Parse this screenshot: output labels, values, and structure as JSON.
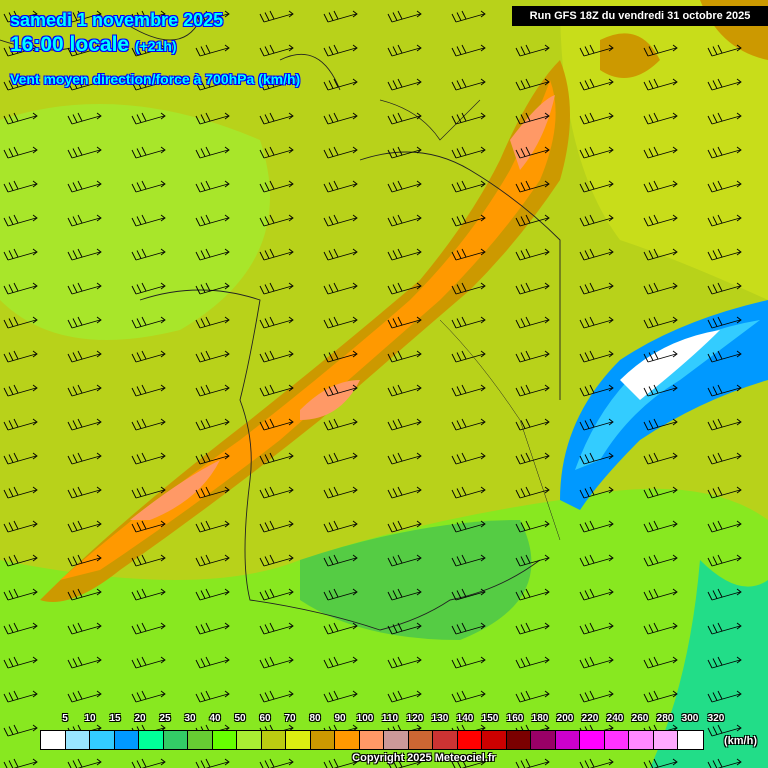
{
  "header": {
    "date": "samedi 1 novembre 2025",
    "time": "16:00 locale",
    "offset": "(+21h)",
    "parameter": "Vent moyen direction/force à 700hPa (km/h)",
    "run": "Run GFS 18Z du vendredi 31 octobre 2025"
  },
  "legend": {
    "labels": [
      "5",
      "10",
      "15",
      "20",
      "25",
      "30",
      "40",
      "50",
      "60",
      "70",
      "80",
      "90",
      "100",
      "110",
      "120",
      "130",
      "140",
      "150",
      "160",
      "180",
      "200",
      "220",
      "240",
      "260",
      "280",
      "300",
      "320"
    ],
    "colors": [
      "#ffffff",
      "#99e6ff",
      "#33ccff",
      "#0099ff",
      "#00ff99",
      "#33cc66",
      "#66cc33",
      "#66ff00",
      "#aaee33",
      "#bbcc11",
      "#ddee11",
      "#cc9900",
      "#ff9900",
      "#ff9966",
      "#cc9999",
      "#cc6633",
      "#cc3333",
      "#ff0000",
      "#cc0000",
      "#7a0000",
      "#990066",
      "#cc00cc",
      "#ff00ff",
      "#ff33ff",
      "#ff88ff",
      "#ffaaff",
      "#ffffff"
    ],
    "unit": "(km/h)"
  },
  "map": {
    "region": "France",
    "wind_direction": "west-southwest",
    "max_wind_zone_color": "#ff9900",
    "min_wind_zone_color": "#33ccff"
  },
  "footer": {
    "copyright": "Copyright 2025 Meteociel.fr"
  }
}
